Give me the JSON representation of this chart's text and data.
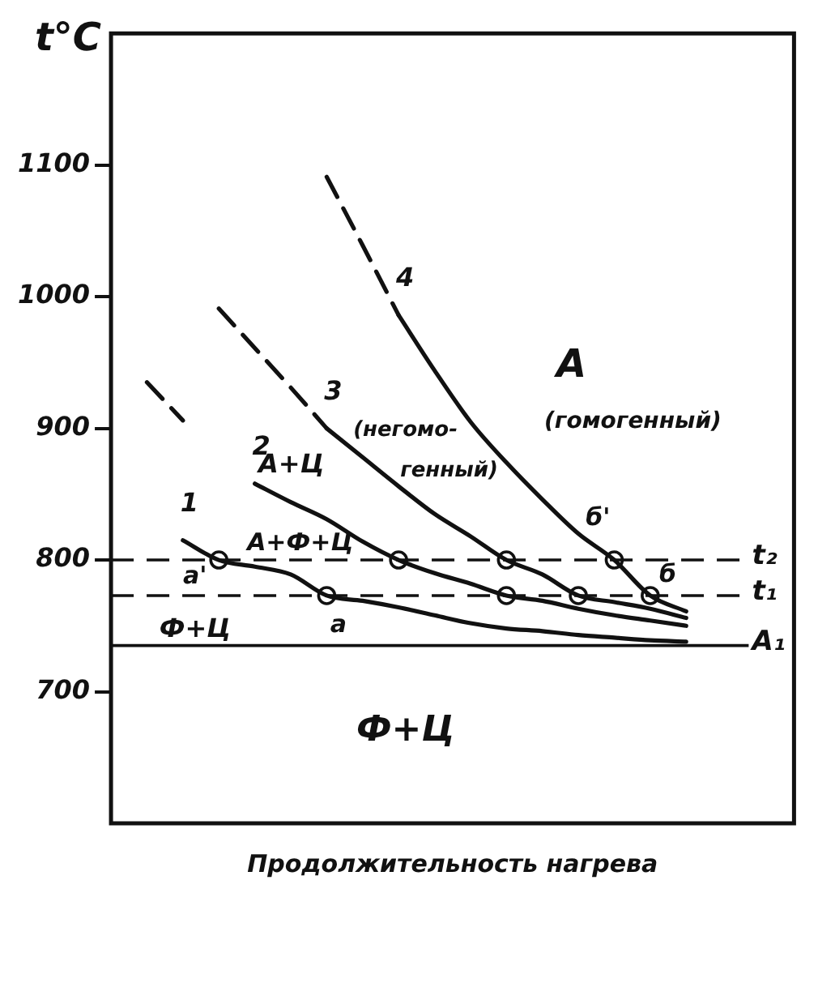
{
  "chart_data": {
    "type": "line",
    "xlabel": "Продолжительность нагрева",
    "ylabel": "t°C",
    "categories": [
      null,
      null,
      null,
      null,
      null,
      null,
      null,
      null,
      null,
      null,
      null,
      null,
      null,
      null,
      null,
      null,
      null,
      null,
      null,
      null
    ],
    "ylim": [
      600,
      1200
    ],
    "yticks": [
      700,
      800,
      900,
      1000,
      1100
    ],
    "tick_labels": "y",
    "grid": false,
    "series": [
      {
        "name": "1",
        "color": "#111111",
        "line_style": "solid",
        "values": [
          null,
          null,
          815,
          800,
          795,
          789,
          773,
          769,
          764,
          758,
          752,
          748,
          746,
          743,
          741,
          739,
          738,
          null,
          null,
          null
        ]
      },
      {
        "color": "#111111",
        "line_style": "dashed",
        "values": [
          null,
          935,
          906,
          null,
          null,
          null,
          null,
          null,
          null,
          null,
          null,
          null,
          null,
          null,
          null,
          null,
          null,
          null,
          null,
          null
        ]
      },
      {
        "name": "2",
        "color": "#111111",
        "line_style": "solid",
        "values": [
          null,
          null,
          null,
          null,
          858,
          844,
          831,
          814,
          800,
          790,
          782,
          773,
          769,
          763,
          758,
          754,
          750,
          null,
          null,
          null
        ]
      },
      {
        "color": "#111111",
        "line_style": "dashed",
        "values": [
          null,
          null,
          null,
          991,
          961,
          931,
          900,
          null,
          null,
          null,
          null,
          null,
          null,
          null,
          null,
          null,
          null,
          null,
          null,
          null
        ]
      },
      {
        "name": "3",
        "color": "#111111",
        "line_style": "solid",
        "values": [
          null,
          null,
          null,
          null,
          null,
          null,
          900,
          878,
          856,
          835,
          818,
          800,
          789,
          773,
          768,
          763,
          756,
          null,
          null,
          null
        ]
      },
      {
        "color": "#111111",
        "line_style": "dashed",
        "values": [
          null,
          null,
          null,
          null,
          null,
          null,
          1091,
          1039,
          986,
          null,
          null,
          null,
          null,
          null,
          null,
          null,
          null,
          null,
          null,
          null
        ]
      },
      {
        "name": "4",
        "color": "#111111",
        "line_style": "solid",
        "values": [
          null,
          null,
          null,
          null,
          null,
          null,
          null,
          null,
          986,
          944,
          905,
          874,
          846,
          820,
          800,
          773,
          761,
          null,
          null,
          null
        ]
      },
      {
        "type": "scatter",
        "color": "#111111",
        "marker": "circle",
        "values": [
          null,
          null,
          null,
          800,
          null,
          null,
          773,
          null,
          null,
          null,
          null,
          null,
          null,
          null,
          null,
          null,
          null,
          null,
          null,
          null
        ]
      },
      {
        "type": "scatter",
        "color": "#111111",
        "marker": "circle",
        "values": [
          null,
          null,
          null,
          null,
          null,
          null,
          null,
          null,
          800,
          null,
          null,
          773,
          null,
          null,
          null,
          null,
          null,
          null,
          null,
          null
        ]
      },
      {
        "type": "scatter",
        "color": "#111111",
        "marker": "circle",
        "values": [
          null,
          null,
          null,
          null,
          null,
          null,
          null,
          null,
          null,
          null,
          null,
          800,
          null,
          773,
          null,
          null,
          null,
          null,
          null,
          null
        ]
      },
      {
        "type": "scatter",
        "color": "#111111",
        "marker": "circle",
        "values": [
          null,
          null,
          null,
          null,
          null,
          null,
          null,
          null,
          null,
          null,
          null,
          null,
          null,
          null,
          800,
          773,
          null,
          null,
          null,
          null
        ]
      }
    ],
    "ref_lines": [
      {
        "axis": "y",
        "value": 800,
        "label": "t₂",
        "line_style": "dashed",
        "color": "#111111"
      },
      {
        "axis": "y",
        "value": 773,
        "label": "t₁",
        "line_style": "dashed",
        "color": "#111111"
      },
      {
        "axis": "y",
        "value": 735,
        "label": "A₁",
        "line_style": "solid",
        "color": "#111111"
      }
    ],
    "annotations": [
      "A",
      "(гомогенный)",
      "(негомо-",
      "генный)",
      "A+Ц",
      "A+Ф+Ц",
      "a'",
      "a",
      "Ф+Ц",
      "Ф+Ц",
      "б'",
      "б"
    ]
  }
}
